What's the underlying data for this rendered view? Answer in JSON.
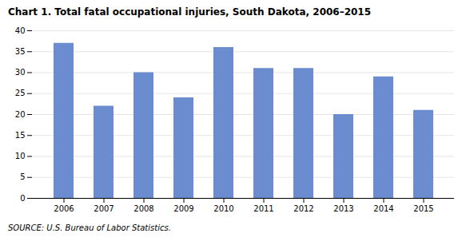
{
  "chart_data": {
    "type": "bar",
    "title": "Chart 1. Total fatal occupational injuries, South Dakota, 2006–2015",
    "categories": [
      "2006",
      "2007",
      "2008",
      "2009",
      "2010",
      "2011",
      "2012",
      "2013",
      "2014",
      "2015"
    ],
    "values": [
      37,
      22,
      30,
      24,
      36,
      31,
      31,
      20,
      29,
      21
    ],
    "color": "#6b8cce",
    "ylim": [
      0,
      40
    ],
    "yticks": [
      0,
      5,
      10,
      15,
      20,
      25,
      30,
      35,
      40
    ],
    "grid": true,
    "source": "SOURCE: U.S. Bureau of Labor Statistics."
  }
}
